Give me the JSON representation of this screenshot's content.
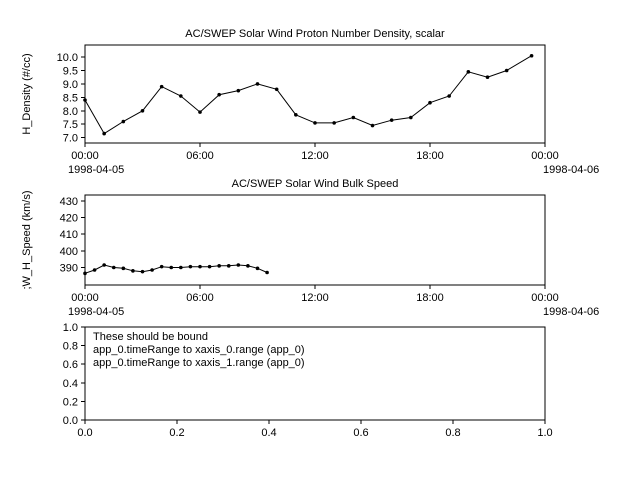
{
  "colors": {
    "foreground": "#000000",
    "background": "#ffffff"
  },
  "chart_data": [
    {
      "type": "line",
      "title": "AC/SWEP  Solar Wind Proton Number Density, scalar",
      "ylabel": "H_Density (#/cc)",
      "xlim": [
        0,
        24
      ],
      "ylim": [
        6.8,
        10.45
      ],
      "ytick_values": [
        7.0,
        7.5,
        8.0,
        8.5,
        9.0,
        9.5,
        10.0
      ],
      "ytick_labels": [
        "7.0",
        "7.5",
        "8.0",
        "8.5",
        "9.0",
        "9.5",
        "10.0"
      ],
      "xtick_values": [
        0,
        6,
        12,
        18,
        24
      ],
      "xtick_labels": [
        "00:00",
        "06:00",
        "12:00",
        "18:00",
        "00:00"
      ],
      "x_start_label": "1998-04-05",
      "x_end_label": "1998-04-06",
      "marker": true,
      "x": [
        0,
        1,
        2,
        3,
        4,
        5,
        6,
        7,
        8,
        9,
        10,
        11,
        12,
        13,
        14,
        15,
        16,
        17,
        18,
        19,
        20,
        21,
        22,
        23.3
      ],
      "y": [
        8.4,
        7.15,
        7.6,
        8.0,
        8.9,
        8.55,
        7.95,
        8.6,
        8.75,
        9.0,
        8.8,
        7.85,
        7.55,
        7.55,
        7.75,
        7.45,
        7.65,
        7.75,
        8.3,
        8.55,
        9.45,
        9.25,
        9.5,
        10.05
      ],
      "annotations": []
    },
    {
      "type": "line",
      "title": "AC/SWEP  Solar Wind Bulk Speed",
      "ylabel": ";W_H_Speed (km/s)",
      "xlim": [
        0,
        24
      ],
      "ylim": [
        379.5,
        433.5
      ],
      "ytick_values": [
        390,
        400,
        410,
        420,
        430
      ],
      "ytick_labels": [
        "390",
        "400",
        "410",
        "420",
        "430"
      ],
      "xtick_values": [
        0,
        6,
        12,
        18,
        24
      ],
      "xtick_labels": [
        "00:00",
        "06:00",
        "12:00",
        "18:00",
        "00:00"
      ],
      "x_start_label": "1998-04-05",
      "x_end_label": "1998-04-06",
      "marker": true,
      "x": [
        0,
        0.5,
        1,
        1.5,
        2,
        2.5,
        3,
        3.5,
        4,
        4.5,
        5,
        5.5,
        6,
        6.5,
        7,
        7.5,
        8,
        8.5,
        9,
        9.5
      ],
      "y": [
        386.5,
        388.5,
        391.5,
        390,
        389.5,
        388,
        387.5,
        388.5,
        390.5,
        390,
        390,
        390.5,
        390.5,
        390.5,
        391,
        391,
        391.5,
        391,
        389.5,
        387
      ],
      "annotations": []
    },
    {
      "type": "line",
      "title": "",
      "ylabel": "",
      "xlim": [
        0,
        1
      ],
      "ylim": [
        0,
        1
      ],
      "ytick_values": [
        0.0,
        0.2,
        0.4,
        0.6,
        0.8,
        1.0
      ],
      "ytick_labels": [
        "0.0",
        "0.2",
        "0.4",
        "0.6",
        "0.8",
        "1.0"
      ],
      "xtick_values": [
        0.0,
        0.2,
        0.4,
        0.6,
        0.8,
        1.0
      ],
      "xtick_labels": [
        "0.0",
        "0.2",
        "0.4",
        "0.6",
        "0.8",
        "1.0"
      ],
      "x_start_label": "",
      "x_end_label": "",
      "marker": false,
      "x": [],
      "y": [],
      "annotations": [
        "These should be bound",
        "app_0.timeRange to xaxis_0.range  (app_0)",
        "app_0.timeRange to xaxis_1.range  (app_0)"
      ]
    }
  ]
}
